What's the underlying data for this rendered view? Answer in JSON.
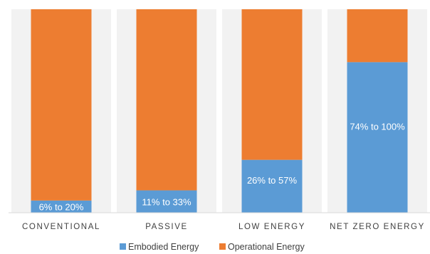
{
  "chart_data": {
    "type": "bar",
    "stacked": true,
    "normalized": true,
    "categories": [
      "CONVENTIONAL",
      "PASSIVE",
      "LOW ENERGY",
      "NET ZERO ENERGY"
    ],
    "series": [
      {
        "name": "Embodied Energy",
        "color": "#5b9bd5",
        "values": [
          6,
          11,
          26,
          74
        ]
      },
      {
        "name": "Operational Energy",
        "color": "#ed7d31",
        "values": [
          94,
          89,
          74,
          26
        ]
      }
    ],
    "data_labels": [
      "6% to 20%",
      "11% to 33%",
      "26% to 57%",
      "74% to 100%"
    ],
    "ylim": [
      0,
      100
    ],
    "grid": false,
    "legend": "bottom",
    "background_bands": true
  }
}
